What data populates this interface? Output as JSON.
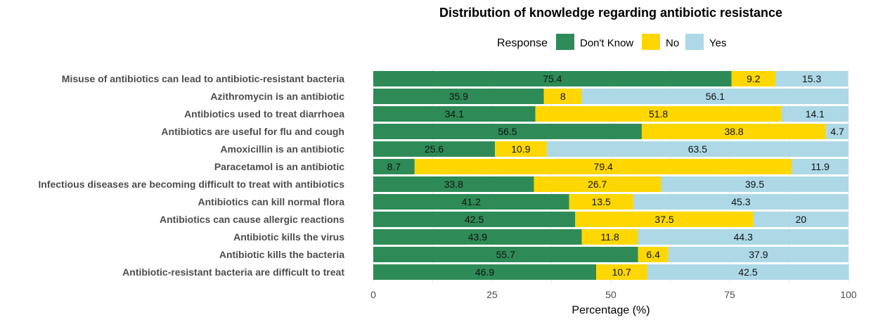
{
  "chart_data": {
    "type": "bar",
    "orientation": "horizontal",
    "stacked": true,
    "title": "Distribution of knowledge regarding antibiotic resistance",
    "xlabel": "Percentage (%)",
    "ylabel": "",
    "xlim": [
      0,
      100
    ],
    "xticks": [
      0,
      25,
      50,
      75,
      100
    ],
    "grid": true,
    "legend": {
      "title": "Response",
      "position": "top"
    },
    "categories": [
      "Misuse of antibiotics can lead to antibiotic-resistant bacteria",
      "Azithromycin is an antibiotic",
      "Antibiotics used to treat diarrhoea",
      "Antibiotics are useful for flu and cough",
      "Amoxicillin is an antibiotic",
      "Paracetamol is an antibiotic",
      "Infectious diseases are becoming difficult to treat with antibiotics",
      "Antibiotics can kill normal flora",
      "Antibiotics can cause allergic reactions",
      "Antibiotic kills the virus",
      "Antibiotic kills the bacteria",
      "Antibiotic-resistant bacteria are difficult to treat"
    ],
    "series": [
      {
        "name": "Don't Know",
        "color": "#2e8b57",
        "values": [
          75.4,
          35.9,
          34.1,
          56.5,
          25.6,
          8.7,
          33.8,
          41.2,
          42.5,
          43.9,
          55.7,
          46.9
        ]
      },
      {
        "name": "No",
        "color": "#ffd700",
        "values": [
          9.2,
          8,
          51.8,
          38.8,
          10.9,
          79.4,
          26.7,
          13.5,
          37.5,
          11.8,
          6.4,
          10.7
        ]
      },
      {
        "name": "Yes",
        "color": "#add8e6",
        "values": [
          15.3,
          56.1,
          14.1,
          4.7,
          63.5,
          11.9,
          39.5,
          45.3,
          20,
          44.3,
          37.9,
          42.5
        ]
      }
    ]
  }
}
